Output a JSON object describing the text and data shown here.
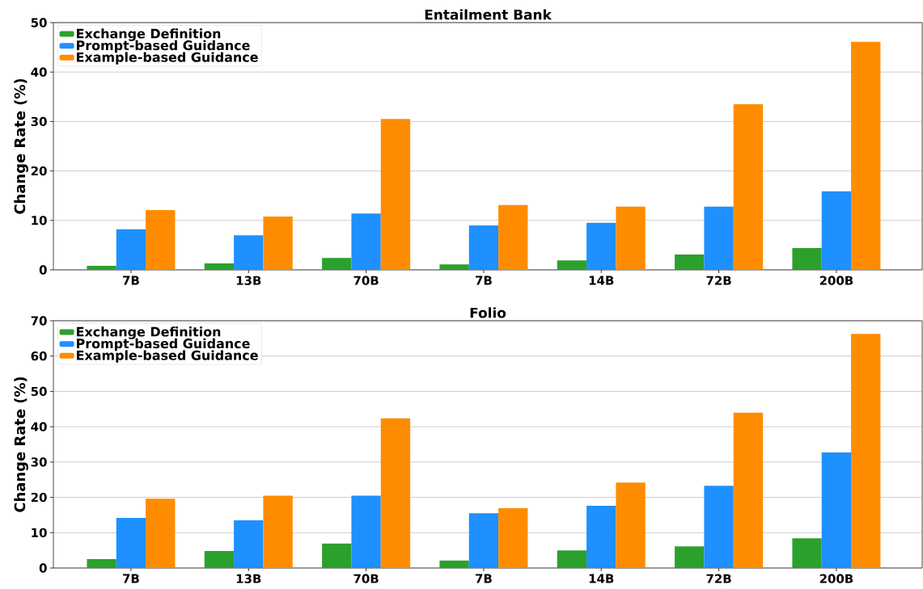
{
  "chart_data": [
    {
      "type": "bar",
      "title": "Entailment Bank",
      "ylabel": "Change Rate (%)",
      "categories": [
        "7B",
        "13B",
        "70B",
        "7B",
        "14B",
        "72B",
        "200B"
      ],
      "series": [
        {
          "name": "Exchange Definition",
          "color": "#2ca02c",
          "values": [
            0.8,
            1.3,
            2.4,
            1.1,
            1.9,
            3.1,
            4.4
          ]
        },
        {
          "name": "Prompt-based Guidance",
          "color": "#1e90ff",
          "values": [
            8.2,
            7.0,
            11.4,
            9.0,
            9.5,
            12.8,
            15.9
          ]
        },
        {
          "name": "Example-based Guidance",
          "color": "#ff8c00",
          "values": [
            12.1,
            10.8,
            30.5,
            13.1,
            12.8,
            33.5,
            46.1
          ]
        }
      ],
      "ylim": [
        0,
        50
      ],
      "yticks": [
        0,
        10,
        20,
        30,
        40,
        50
      ],
      "grid": "y",
      "legend": "top left"
    },
    {
      "type": "bar",
      "title": "Folio",
      "ylabel": "Change Rate (%)",
      "categories": [
        "7B",
        "13B",
        "70B",
        "7B",
        "14B",
        "72B",
        "200B"
      ],
      "series": [
        {
          "name": "Exchange Definition",
          "color": "#2ca02c",
          "values": [
            2.5,
            4.8,
            6.9,
            2.1,
            5.0,
            6.1,
            8.4
          ]
        },
        {
          "name": "Prompt-based Guidance",
          "color": "#1e90ff",
          "values": [
            14.2,
            13.5,
            20.5,
            15.5,
            17.6,
            23.3,
            32.7
          ]
        },
        {
          "name": "Example-based Guidance",
          "color": "#ff8c00",
          "values": [
            19.6,
            20.5,
            42.4,
            16.9,
            24.2,
            44.0,
            66.3
          ]
        }
      ],
      "ylim": [
        0,
        70
      ],
      "yticks": [
        0,
        10,
        20,
        30,
        40,
        50,
        60,
        70
      ],
      "grid": "y",
      "legend": "top left"
    }
  ]
}
